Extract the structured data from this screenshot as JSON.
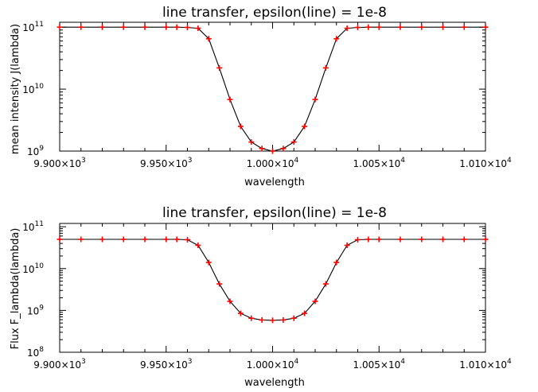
{
  "chart_data": [
    {
      "type": "line",
      "title": "line transfer, epsilon(line) = 1e-8",
      "xlabel": "wavelength",
      "ylabel": "mean intensity J(lambda)",
      "xlim": [
        9900,
        10100
      ],
      "ylim": [
        1000000000.0,
        120000000000.0
      ],
      "yscale": "log",
      "grid": false,
      "xticks": [
        "9.900×10",
        "9.950×10",
        "1.000×10",
        "1.005×10",
        "1.010×10"
      ],
      "xtick_exponents": [
        "3",
        "3",
        "4",
        "4",
        "4"
      ],
      "yticks": [
        "10",
        "10",
        "10"
      ],
      "ytick_exponents": [
        "11",
        "10",
        "9"
      ],
      "series": [
        {
          "color": "#000000",
          "marker": "plus",
          "marker_color": "#ff0000",
          "x": [
            9900,
            9910,
            9920,
            9930,
            9940,
            9950,
            9955,
            9960,
            9965,
            9970,
            9975,
            9980,
            9985,
            9990,
            9995,
            10000,
            10005,
            10010,
            10015,
            10020,
            10025,
            10030,
            10035,
            10040,
            10045,
            10050,
            10060,
            10070,
            10080,
            10090,
            10100
          ],
          "y": [
            100000000000.0,
            100000000000.0,
            100000000000.0,
            100000000000.0,
            100000000000.0,
            100000000000.0,
            100000000000.0,
            99000000000.0,
            96000000000.0,
            65000000000.0,
            22000000000.0,
            6800000000.0,
            2500000000.0,
            1400000000.0,
            1100000000.0,
            1000000000.0,
            1100000000.0,
            1400000000.0,
            2500000000.0,
            6800000000.0,
            22000000000.0,
            65000000000.0,
            96000000000.0,
            99000000000.0,
            100000000000.0,
            100000000000.0,
            100000000000.0,
            100000000000.0,
            100000000000.0,
            100000000000.0,
            100000000000.0
          ]
        }
      ]
    },
    {
      "type": "line",
      "title": "line transfer, epsilon(line) = 1e-8",
      "xlabel": "wavelength",
      "ylabel": "Flux F_lambda(lambda)",
      "xlim": [
        9900,
        10100
      ],
      "ylim": [
        100000000.0,
        120000000000.0
      ],
      "yscale": "log",
      "grid": false,
      "xticks": [
        "9.900×10",
        "9.950×10",
        "1.000×10",
        "1.005×10",
        "1.010×10"
      ],
      "xtick_exponents": [
        "3",
        "3",
        "4",
        "4",
        "4"
      ],
      "yticks": [
        "10",
        "10",
        "10",
        "10"
      ],
      "ytick_exponents": [
        "11",
        "10",
        "9",
        "8"
      ],
      "series": [
        {
          "color": "#000000",
          "marker": "plus",
          "marker_color": "#ff0000",
          "x": [
            9900,
            9910,
            9920,
            9930,
            9940,
            9950,
            9955,
            9960,
            9965,
            9970,
            9975,
            9980,
            9985,
            9990,
            9995,
            10000,
            10005,
            10010,
            10015,
            10020,
            10025,
            10030,
            10035,
            10040,
            10045,
            10050,
            10060,
            10070,
            10080,
            10090,
            10100
          ],
          "y": [
            50000000000.0,
            50000000000.0,
            50000000000.0,
            50000000000.0,
            50000000000.0,
            50000000000.0,
            50000000000.0,
            49000000000.0,
            36000000000.0,
            14000000000.0,
            4300000000.0,
            1650000000.0,
            850000000.0,
            650000000.0,
            590000000.0,
            580000000.0,
            590000000.0,
            650000000.0,
            850000000.0,
            1650000000.0,
            4300000000.0,
            14000000000.0,
            36000000000.0,
            49000000000.0,
            50000000000.0,
            50000000000.0,
            50000000000.0,
            50000000000.0,
            50000000000.0,
            50000000000.0,
            50000000000.0
          ]
        }
      ]
    }
  ]
}
